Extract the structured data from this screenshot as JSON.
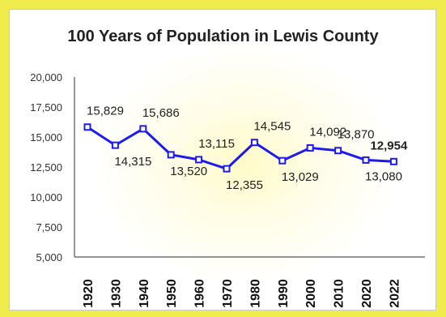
{
  "chart_data": {
    "type": "line",
    "title": "100 Years of Population in Lewis County",
    "xlabel": "",
    "ylabel": "",
    "categories": [
      "1920",
      "1930",
      "1940",
      "1950",
      "1960",
      "1970",
      "1980",
      "1990",
      "2000",
      "2010",
      "2020",
      "2022"
    ],
    "values": [
      15829,
      14315,
      15686,
      13520,
      13115,
      12355,
      14545,
      13029,
      14092,
      13870,
      13080,
      12954
    ],
    "data_labels": [
      "15,829",
      "14,315",
      "15,686",
      "13,520",
      "13,115",
      "12,355",
      "14,545",
      "13,029",
      "14,092",
      "13,870",
      "13,080",
      "12,954"
    ],
    "y_ticks": [
      "20,000",
      "17,500",
      "15,000",
      "12,500",
      "10,000",
      "7,500",
      "5,000"
    ],
    "ylim": [
      5000,
      20000
    ],
    "line_color": "#1c1cf0",
    "background_color": "#f0ec4e",
    "grid": false,
    "legend": "none"
  }
}
